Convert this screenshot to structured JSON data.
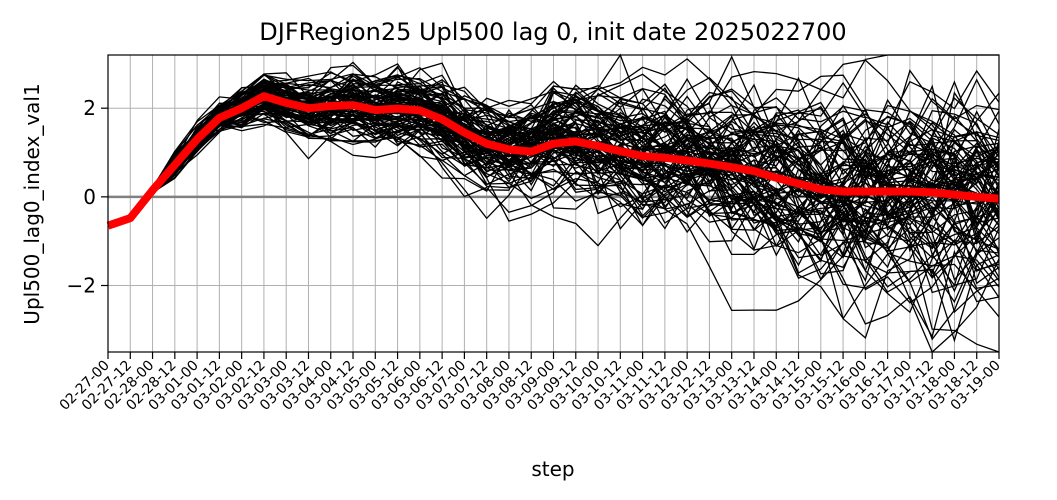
{
  "chart_data": {
    "type": "line",
    "title": "DJFRegion25 Upl500 lag 0, init date 2025022700",
    "xlabel": "step",
    "ylabel": "Upl500_lag0_index_val1",
    "x": [
      "02-27-00",
      "02-27-12",
      "02-28-00",
      "02-28-12",
      "03-01-00",
      "03-01-12",
      "03-02-00",
      "03-02-12",
      "03-03-00",
      "03-03-12",
      "03-04-00",
      "03-04-12",
      "03-05-00",
      "03-05-12",
      "03-06-00",
      "03-06-12",
      "03-07-00",
      "03-07-12",
      "03-08-00",
      "03-08-12",
      "03-09-00",
      "03-09-12",
      "03-10-00",
      "03-10-12",
      "03-11-00",
      "03-11-12",
      "03-12-00",
      "03-12-12",
      "03-13-00",
      "03-13-12",
      "03-14-00",
      "03-14-12",
      "03-15-00",
      "03-15-12",
      "03-16-00",
      "03-16-12",
      "03-17-00",
      "03-17-12",
      "03-18-00",
      "03-18-12",
      "03-19-00"
    ],
    "ylim": [
      -3.5,
      3.2
    ],
    "yticks": [
      -2,
      0,
      2
    ],
    "ytick_labels": [
      "−2",
      "0",
      "2"
    ],
    "grid": true,
    "reference_line": {
      "y": 0,
      "color": "#808080"
    },
    "ensemble": {
      "members": 100,
      "color": "#000000",
      "start_value": -0.65,
      "early_spread": 0.12,
      "late_spread": 1.35
    },
    "series": [
      {
        "role": "ensemble-mean",
        "color": "#ff0000",
        "values": [
          -0.65,
          -0.48,
          0.15,
          0.72,
          1.3,
          1.78,
          2.0,
          2.27,
          2.12,
          2.0,
          2.05,
          2.07,
          1.96,
          1.99,
          1.95,
          1.75,
          1.45,
          1.2,
          1.07,
          1.02,
          1.2,
          1.25,
          1.15,
          1.03,
          0.92,
          0.88,
          0.82,
          0.75,
          0.67,
          0.58,
          0.43,
          0.3,
          0.17,
          0.12,
          0.12,
          0.12,
          0.12,
          0.1,
          0.05,
          0.0,
          -0.04
        ]
      }
    ]
  }
}
